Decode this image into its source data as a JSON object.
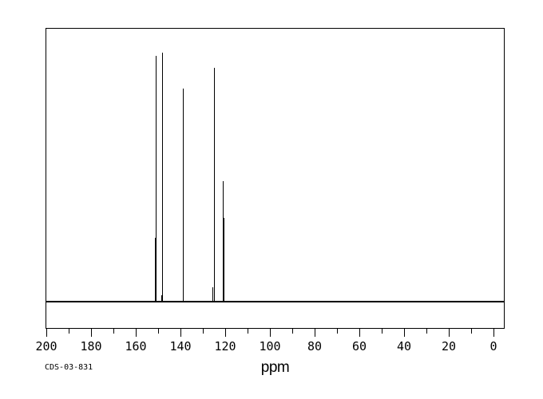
{
  "chart_data": {
    "type": "line",
    "subtype": "nmr-spectrum",
    "title": "",
    "xlabel": "ppm",
    "ylabel": "",
    "annotation": "CDS-03-831",
    "x_axis": {
      "min": 0,
      "max": 200,
      "reversed": true,
      "major_tick_step": 20,
      "minor_tick_step": 10,
      "tick_labels": [
        "200",
        "180",
        "160",
        "140",
        "120",
        "100",
        "80",
        "60",
        "40",
        "20",
        "0"
      ]
    },
    "grid": false,
    "legend": false,
    "peaks": [
      {
        "ppm": 151.5,
        "rel_intensity": 0.256
      },
      {
        "ppm": 151.2,
        "rel_intensity": 0.987
      },
      {
        "ppm": 148.7,
        "rel_intensity": 0.026
      },
      {
        "ppm": 148.2,
        "rel_intensity": 1.0
      },
      {
        "ppm": 138.9,
        "rel_intensity": 0.856
      },
      {
        "ppm": 125.8,
        "rel_intensity": 0.058
      },
      {
        "ppm": 125.0,
        "rel_intensity": 0.939
      },
      {
        "ppm": 121.1,
        "rel_intensity": 0.484
      },
      {
        "ppm": 120.7,
        "rel_intensity": 0.337
      }
    ],
    "colors": {
      "line": "#000000",
      "background": "#ffffff"
    }
  }
}
